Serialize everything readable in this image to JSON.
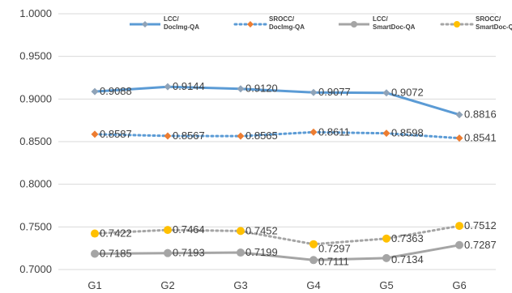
{
  "chart_data": {
    "type": "line",
    "categories": [
      "G1",
      "G2",
      "G3",
      "G4",
      "G5",
      "G6"
    ],
    "ylim": [
      0.7,
      1.0
    ],
    "yticks": [
      "0.7000",
      "0.7500",
      "0.8000",
      "0.8500",
      "0.9000",
      "0.9500",
      "1.0000"
    ],
    "grid": true,
    "legend_position": "top",
    "series": [
      {
        "name": "LCC/ DocImg-QA",
        "name_lines": [
          "LCC/",
          "DocImg-QA"
        ],
        "values": [
          0.9088,
          0.9144,
          0.912,
          0.9077,
          0.9072,
          0.8816
        ],
        "labels": [
          "0.9088",
          "0.9144",
          "0.9120",
          "0.9077",
          "0.9072",
          "0.8816"
        ],
        "line_color": "#5B9BD5",
        "marker_color": "#8FA3B8",
        "line_style": "solid",
        "marker": "diamond"
      },
      {
        "name": "SROCC/ DocImg-QA",
        "name_lines": [
          "SROCC/",
          "DocImg-QA"
        ],
        "values": [
          0.8587,
          0.8567,
          0.8565,
          0.8611,
          0.8598,
          0.8541
        ],
        "labels": [
          "0.8587",
          "0.8567",
          "0.8565",
          "0.8611",
          "0.8598",
          "0.8541"
        ],
        "line_color": "#5B9BD5",
        "marker_color": "#ED7D31",
        "line_style": "dotted",
        "marker": "diamond"
      },
      {
        "name": "LCC/ SmartDoc-QA",
        "name_lines": [
          "LCC/",
          "SmartDoc-QA"
        ],
        "values": [
          0.7185,
          0.7193,
          0.7199,
          0.7111,
          0.7134,
          0.7287
        ],
        "labels": [
          "0.7185",
          "0.7193",
          "0.7199",
          "0.7111",
          "0.7134",
          "0.7287"
        ],
        "line_color": "#A5A5A5",
        "marker_color": "#A5A5A5",
        "line_style": "solid",
        "marker": "circle"
      },
      {
        "name": "SROCC/ SmartDoc-QA",
        "name_lines": [
          "SROCC/",
          "SmartDoc-QA"
        ],
        "values": [
          0.7422,
          0.7464,
          0.7452,
          0.7297,
          0.7363,
          0.7512
        ],
        "labels": [
          "0.7422",
          "0.7464",
          "0.7452",
          "0.7297",
          "0.7363",
          "0.7512"
        ],
        "line_color": "#A5A5A5",
        "marker_color": "#FFC000",
        "line_style": "dotted",
        "marker": "circle"
      }
    ]
  }
}
